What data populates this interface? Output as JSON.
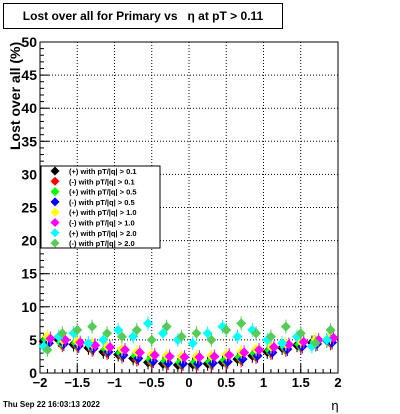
{
  "canvas": {
    "title": "Lost over all for Primary vs   η at pT > 0.11",
    "date_stamp": "Thu Sep 22 16:03:13 2022"
  },
  "chart_data": {
    "type": "scatter",
    "title": "Lost over all for Primary vs   η at pT > 0.11",
    "xlabel": "η",
    "ylabel": "Lost over all (%)",
    "xlim": [
      -2,
      2
    ],
    "ylim": [
      0,
      50
    ],
    "x_ticks": [
      -2,
      -1.5,
      -1,
      -0.5,
      0,
      0.5,
      1,
      1.5,
      2
    ],
    "x_tick_labels": [
      "−2",
      "−1.5",
      "−1",
      "−0.5",
      "0",
      "0.5",
      "1",
      "1.5",
      "2"
    ],
    "y_ticks": [
      0,
      5,
      10,
      15,
      20,
      25,
      30,
      35,
      40,
      45,
      50
    ],
    "y_tick_labels": [
      "0",
      "5",
      "10",
      "15",
      "20",
      "25",
      "30",
      "35",
      "40",
      "45",
      "50"
    ],
    "grid": true,
    "legend_position": "left-center",
    "series": [
      {
        "name": "(+) with pT/|q| > 0.1",
        "color": "#000000",
        "x": [
          -1.95,
          -1.75,
          -1.55,
          -1.35,
          -1.15,
          -0.95,
          -0.75,
          -0.55,
          -0.35,
          -0.15,
          0.05,
          0.25,
          0.45,
          0.65,
          0.85,
          1.05,
          1.25,
          1.45,
          1.65,
          1.85
        ],
        "y": [
          4.8,
          5.0,
          4.3,
          3.8,
          3.2,
          2.8,
          2.2,
          1.6,
          1.4,
          1.2,
          1.3,
          1.4,
          1.6,
          2.1,
          2.6,
          3.2,
          3.8,
          4.2,
          4.6,
          4.9
        ]
      },
      {
        "name": "(-) with pT/|q| > 0.1",
        "color": "#ff0000",
        "x": [
          -1.9,
          -1.7,
          -1.5,
          -1.3,
          -1.1,
          -0.9,
          -0.7,
          -0.5,
          -0.3,
          -0.1,
          0.1,
          0.3,
          0.5,
          0.7,
          0.9,
          1.1,
          1.3,
          1.5,
          1.7,
          1.9
        ],
        "y": [
          4.6,
          4.2,
          4.0,
          3.5,
          3.0,
          2.5,
          2.0,
          1.5,
          1.3,
          1.2,
          1.2,
          1.3,
          1.5,
          1.9,
          2.4,
          3.0,
          3.5,
          3.9,
          4.3,
          4.5
        ]
      },
      {
        "name": "(+) with pT/|q| > 0.5",
        "color": "#00ff00",
        "x": [
          -1.92,
          -1.72,
          -1.52,
          -1.32,
          -1.12,
          -0.92,
          -0.72,
          -0.52,
          -0.32,
          -0.12,
          0.08,
          0.28,
          0.48,
          0.68,
          0.88,
          1.08,
          1.28,
          1.48,
          1.68,
          1.88
        ],
        "y": [
          5.0,
          4.6,
          4.5,
          4.0,
          3.6,
          3.0,
          2.6,
          2.0,
          1.8,
          1.6,
          1.6,
          1.7,
          1.9,
          2.4,
          2.9,
          3.4,
          3.9,
          4.3,
          4.7,
          5.0
        ]
      },
      {
        "name": "(-) with pT/|q| > 0.5",
        "color": "#0000ff",
        "x": [
          -1.88,
          -1.68,
          -1.48,
          -1.28,
          -1.08,
          -0.88,
          -0.68,
          -0.48,
          -0.28,
          -0.08,
          0.12,
          0.32,
          0.52,
          0.72,
          0.92,
          1.12,
          1.32,
          1.52,
          1.72,
          1.92
        ],
        "y": [
          4.5,
          4.4,
          4.1,
          3.7,
          3.2,
          2.7,
          2.2,
          1.8,
          1.5,
          1.4,
          1.4,
          1.5,
          1.7,
          2.1,
          2.6,
          3.1,
          3.6,
          4.0,
          4.4,
          4.6
        ]
      },
      {
        "name": "(+) with pT/|q| > 1.0",
        "color": "#ffff00",
        "x": [
          -1.9,
          -1.7,
          -1.5,
          -1.3,
          -1.1,
          -0.9,
          -0.7,
          -0.5,
          -0.3,
          -0.1,
          0.1,
          0.3,
          0.5,
          0.7,
          0.9,
          1.1,
          1.3,
          1.5,
          1.7,
          1.9
        ],
        "y": [
          5.5,
          5.0,
          4.8,
          4.4,
          4.0,
          3.6,
          3.2,
          2.8,
          2.6,
          2.5,
          2.5,
          2.6,
          2.8,
          3.2,
          3.6,
          4.0,
          4.4,
          4.8,
          5.1,
          5.4
        ]
      },
      {
        "name": "(-) with pT/|q| > 1.0",
        "color": "#ff00ff",
        "x": [
          -1.86,
          -1.66,
          -1.46,
          -1.26,
          -1.06,
          -0.86,
          -0.66,
          -0.46,
          -0.26,
          -0.06,
          0.14,
          0.34,
          0.54,
          0.74,
          0.94,
          1.14,
          1.34,
          1.54,
          1.74,
          1.94
        ],
        "y": [
          5.2,
          5.0,
          4.6,
          4.2,
          3.9,
          3.5,
          3.1,
          2.7,
          2.5,
          2.4,
          2.4,
          2.5,
          2.7,
          3.1,
          3.5,
          3.9,
          4.3,
          4.7,
          5.0,
          5.3
        ]
      },
      {
        "name": "(+) with pT/|q| > 2.0",
        "color": "#00ffff",
        "x": [
          -1.95,
          -1.75,
          -1.55,
          -1.35,
          -1.15,
          -0.95,
          -0.75,
          -0.55,
          -0.35,
          -0.15,
          0.05,
          0.25,
          0.45,
          0.65,
          0.85,
          1.05,
          1.25,
          1.45,
          1.65,
          1.85
        ],
        "y": [
          4.0,
          5.5,
          6.0,
          4.5,
          5.0,
          6.5,
          5.5,
          7.5,
          6.0,
          5.0,
          4.5,
          6.0,
          7.0,
          5.5,
          6.5,
          5.0,
          4.5,
          5.5,
          4.0,
          5.0
        ]
      },
      {
        "name": "(-) with pT/|q| > 2.0",
        "color": "#55cc55",
        "x": [
          -1.9,
          -1.7,
          -1.5,
          -1.3,
          -1.1,
          -0.9,
          -0.7,
          -0.5,
          -0.3,
          -0.1,
          0.1,
          0.3,
          0.5,
          0.7,
          0.9,
          1.1,
          1.3,
          1.5,
          1.7,
          1.9
        ],
        "y": [
          3.5,
          6.0,
          6.5,
          7.0,
          6.0,
          5.5,
          6.5,
          5.0,
          7.0,
          5.5,
          6.0,
          5.0,
          6.5,
          7.5,
          6.0,
          5.5,
          7.0,
          6.0,
          4.5,
          6.5
        ]
      }
    ]
  }
}
